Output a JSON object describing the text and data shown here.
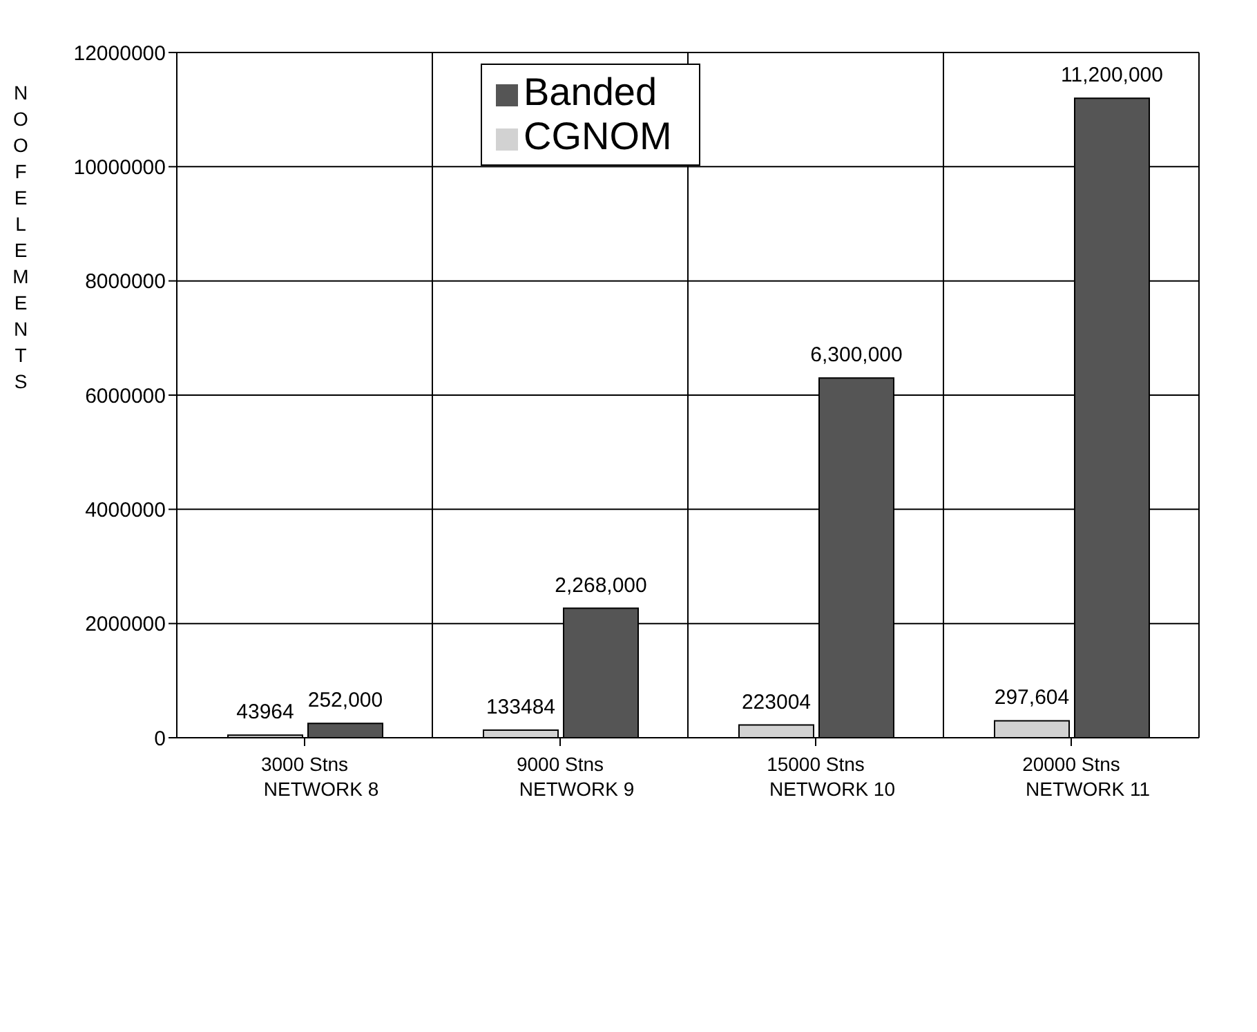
{
  "chart_data": {
    "type": "bar",
    "ylabel": "NO OF ELEMENTS",
    "categories": [
      "3000 Stns\nNETWORK 8",
      "9000 Stns\nNETWORK 9",
      "15000 Stns\nNETWORK 10",
      "20000 Stns\nNETWORK 11"
    ],
    "series": [
      {
        "name": "CGNOM",
        "color": "#d2d2d2",
        "values": [
          43964,
          133484,
          223004,
          297604
        ],
        "value_labels": [
          "43964",
          "133484",
          "223004",
          "297,604"
        ]
      },
      {
        "name": "Banded",
        "color": "#555555",
        "values": [
          252000,
          2268000,
          6300000,
          11200000
        ],
        "value_labels": [
          "252,000",
          "2,268,000",
          "6,300,000",
          "11,200,000"
        ]
      }
    ],
    "ylim": [
      0,
      12000000
    ],
    "yticks": [
      0,
      2000000,
      4000000,
      6000000,
      8000000,
      10000000,
      12000000
    ],
    "grid": true,
    "legend": "top"
  }
}
